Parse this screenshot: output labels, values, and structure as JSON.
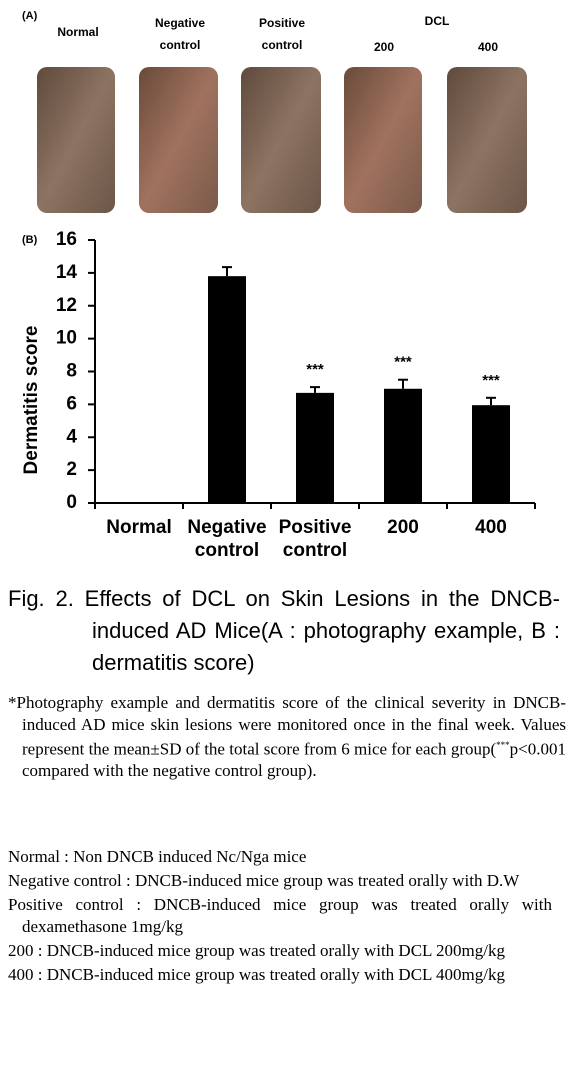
{
  "panel_a": {
    "label": "(A)",
    "columns": [
      "Normal",
      "Negative control",
      "Positive control",
      "200",
      "400"
    ],
    "group_label": "DCL"
  },
  "panel_b": {
    "label": "(B)"
  },
  "chart_data": {
    "type": "bar",
    "y_label": "Dermatitis score",
    "categories": [
      "Normal",
      "Negative control",
      "Positive control",
      "200",
      "400"
    ],
    "values": [
      0,
      13.8,
      6.7,
      6.95,
      5.95
    ],
    "errors": [
      null,
      0.55,
      0.35,
      0.55,
      0.45
    ],
    "significance": [
      null,
      null,
      "***",
      "***",
      "***"
    ],
    "color": "#000000",
    "ylim": [
      0,
      16
    ],
    "yticks": [
      0,
      2,
      4,
      6,
      8,
      10,
      12,
      14,
      16
    ],
    "grid": false
  },
  "caption": {
    "title": "Fig. 2. Effects of DCL on Skin Lesions in the DNCB-induced AD Mice(A : photography example, B : dermatitis score)",
    "note_marker": "*",
    "note_before": "Photography example and dermatitis score of the clinical severity in DNCB-induced AD mice skin lesions were monitored once in the final week. Values represent the mean±SD of the total score from 6 mice for each group(",
    "note_sup": "***",
    "note_after": "p<0.001 compared with the negative control group).",
    "definitions": [
      "Normal : Non DNCB induced Nc/Nga mice",
      "Negative control : DNCB-induced mice group was treated orally with D.W",
      "Positive control : DNCB-induced mice group was treated orally with dexamethasone 1mg/kg",
      "200 : DNCB-induced mice group was treated orally with DCL 200mg/kg",
      "400 : DNCB-induced mice group was treated orally with DCL 400mg/kg"
    ]
  }
}
